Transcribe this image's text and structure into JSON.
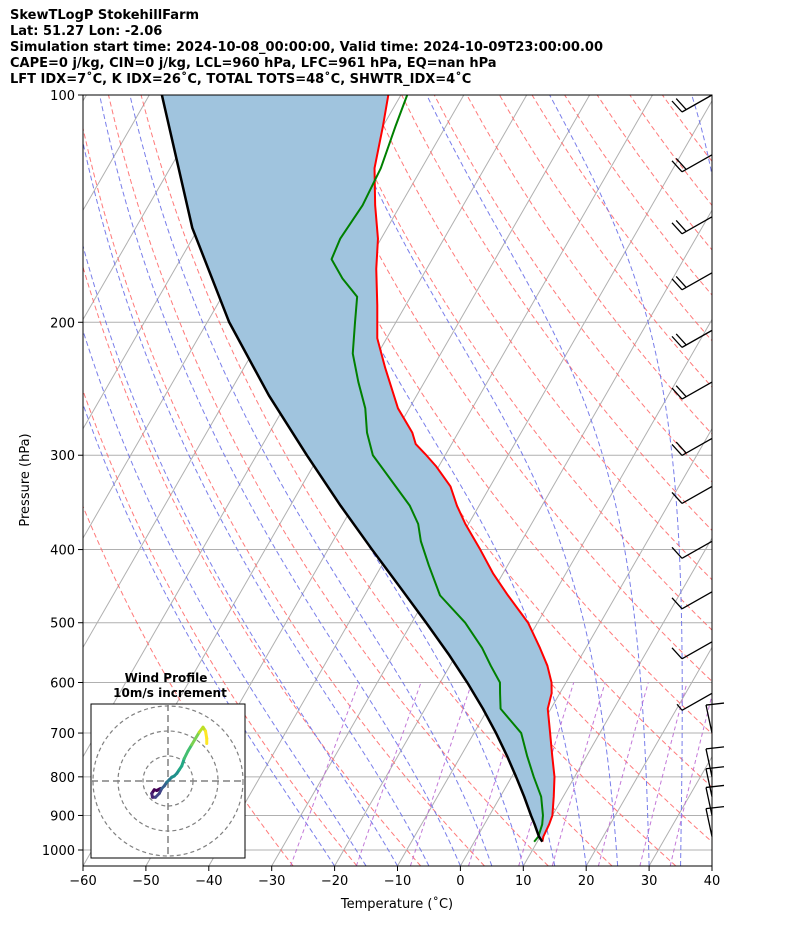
{
  "header": {
    "line1": "SkewTLogP StokehillFarm",
    "line2": "Lat: 51.27   Lon: -2.06",
    "line3": "Simulation start time: 2024-10-08_00:00:00, Valid time: 2024-10-09T23:00:00.00",
    "line4": "CAPE=0 j/kg, CIN=0 j/kg, LCL=960 hPa, LFC=961 hPa, EQ=nan hPa",
    "line5": "LFT IDX=7˚C, K IDX=26˚C, TOTAL TOTS=48˚C, SHWTR_IDX=4˚C"
  },
  "chart_data": {
    "type": "line",
    "subtype": "skew-t log-p",
    "xlabel": "Temperature (˚C)",
    "ylabel": "Pressure (hPa)",
    "xlim": [
      -60,
      40
    ],
    "ylim": [
      1050,
      100
    ],
    "yscale": "log",
    "skew": 30,
    "x_ticks": [
      "−60",
      "−50",
      "−40",
      "−30",
      "−20",
      "−10",
      "0",
      "10",
      "20",
      "30",
      "40"
    ],
    "y_ticks": [
      "100",
      "200",
      "300",
      "400",
      "500",
      "600",
      "700",
      "800",
      "900",
      "1000"
    ],
    "grid": true,
    "colors": {
      "temperature": "#ff0000",
      "dewpoint": "#008000",
      "parcel": "#000000",
      "cape_fill": "#a0c4de",
      "dry_adiabat": "#ff6b6b",
      "moist_adiabat": "#6a70e8",
      "mixing_ratio": "#bc6ad4",
      "isotherm": "#b0b0b0"
    },
    "series": [
      {
        "name": "temperature",
        "p": [
          975,
          960,
          925,
          900,
          850,
          800,
          750,
          700,
          650,
          620,
          600,
          570,
          540,
          500,
          460,
          430,
          400,
          370,
          350,
          330,
          310,
          300,
          290,
          280,
          260,
          230,
          210,
          190,
          170,
          155,
          140,
          125,
          110,
          100
        ],
        "t": [
          10.8,
          10.5,
          10.3,
          10.0,
          8.5,
          6.8,
          4.5,
          2.1,
          -0.5,
          -1.3,
          -2.3,
          -4.5,
          -7.3,
          -11.5,
          -17.2,
          -21.6,
          -25.8,
          -30.5,
          -33.5,
          -36.3,
          -40.5,
          -43.0,
          -45.7,
          -47.3,
          -51.8,
          -57.5,
          -61.5,
          -64.5,
          -68.0,
          -70.5,
          -74.0,
          -77.5,
          -80.0,
          -82.0
        ]
      },
      {
        "name": "dewpoint",
        "p": [
          975,
          960,
          925,
          900,
          850,
          800,
          750,
          700,
          650,
          620,
          600,
          570,
          540,
          500,
          460,
          420,
          390,
          370,
          350,
          330,
          300,
          280,
          260,
          240,
          220,
          200,
          185,
          175,
          165,
          155,
          140,
          125,
          110,
          100
        ],
        "t": [
          9.5,
          9.7,
          9.2,
          8.5,
          6.5,
          3.5,
          0.5,
          -2.5,
          -8.0,
          -9.5,
          -10.5,
          -13.5,
          -16.5,
          -21.5,
          -28.0,
          -32.5,
          -36.0,
          -38.0,
          -41.0,
          -45.0,
          -51.5,
          -54.5,
          -57.0,
          -60.5,
          -64.0,
          -66.5,
          -68.5,
          -72.5,
          -76.0,
          -76.5,
          -76.0,
          -76.5,
          -78.0,
          -79.0
        ]
      },
      {
        "name": "parcel",
        "p": [
          975,
          960,
          925,
          900,
          850,
          800,
          750,
          700,
          650,
          600,
          550,
          500,
          450,
          400,
          350,
          300,
          250,
          200,
          150,
          100
        ],
        "t": [
          10.8,
          9.8,
          8.0,
          6.6,
          3.8,
          0.7,
          -2.7,
          -6.5,
          -10.8,
          -15.7,
          -21.3,
          -27.7,
          -34.9,
          -43.0,
          -52.0,
          -62.0,
          -73.5,
          -86.5,
          -101.0,
          -118.0
        ]
      }
    ],
    "wind_barbs": [
      {
        "p": 100,
        "kind": "barb",
        "barbs": 2.0
      },
      {
        "p": 120,
        "kind": "barb",
        "barbs": 2.0
      },
      {
        "p": 145,
        "kind": "barb",
        "barbs": 2.0
      },
      {
        "p": 172,
        "kind": "barb",
        "barbs": 2.0
      },
      {
        "p": 205,
        "kind": "barb",
        "barbs": 2.0
      },
      {
        "p": 240,
        "kind": "barb",
        "barbs": 2.0
      },
      {
        "p": 285,
        "kind": "barb",
        "barbs": 2.0
      },
      {
        "p": 330,
        "kind": "barb",
        "barbs": 1.0
      },
      {
        "p": 390,
        "kind": "barb",
        "barbs": 1.0
      },
      {
        "p": 455,
        "kind": "barb",
        "barbs": 1.0
      },
      {
        "p": 530,
        "kind": "barb",
        "barbs": 1.0
      },
      {
        "p": 620,
        "kind": "barb",
        "barbs": 0.5
      },
      {
        "p": 700,
        "kind": "light"
      },
      {
        "p": 800,
        "kind": "light"
      },
      {
        "p": 850,
        "kind": "light"
      },
      {
        "p": 900,
        "kind": "light"
      },
      {
        "p": 960,
        "kind": "light"
      }
    ],
    "hodograph": {
      "title": "Wind Profile",
      "subtitle": "10m/s increment",
      "rings_ms": [
        10,
        20,
        30
      ],
      "u": [
        -3.0,
        -4.5,
        -5.5,
        -6.5,
        -6.2,
        -5.0,
        -3.5,
        -2.5,
        -1.5,
        -0.5,
        0.5,
        1.5,
        2.5,
        3.5,
        4.5,
        5.5,
        6.5,
        8.0,
        9.5,
        11.0,
        12.5,
        14.0,
        15.0,
        15.5,
        15.5
      ],
      "v": [
        -3.0,
        -3.8,
        -3.5,
        -5.0,
        -6.5,
        -6.5,
        -5.0,
        -3.0,
        -2.0,
        -0.5,
        0.5,
        1.5,
        2.0,
        3.0,
        4.5,
        6.0,
        9.0,
        12.0,
        14.5,
        17.0,
        19.5,
        21.5,
        20.0,
        17.0,
        15.0
      ],
      "colors": [
        "#440154",
        "#482475",
        "#414487",
        "#355f8d",
        "#2a788e",
        "#21918c",
        "#22a884",
        "#44bf70",
        "#7ad151",
        "#bddf26",
        "#fde725"
      ]
    }
  }
}
